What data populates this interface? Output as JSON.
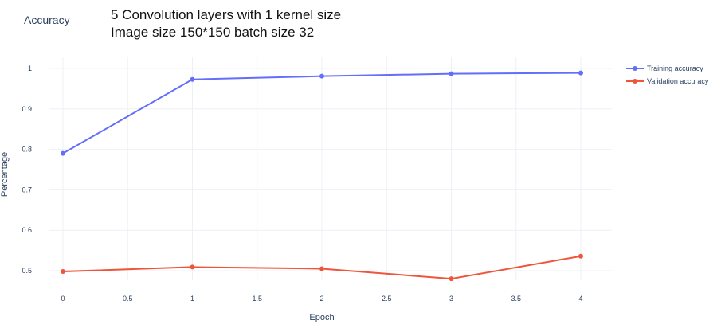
{
  "caption": {
    "line1": "5 Convolution layers with 1 kernel size",
    "line2": "Image size 150*150 batch size 32"
  },
  "chart_data": {
    "type": "line",
    "title": "Accuracy",
    "xlabel": "Epoch",
    "ylabel": "Percentage",
    "x": [
      0,
      1,
      2,
      3,
      4
    ],
    "xlim": [
      0,
      4
    ],
    "ylim": [
      0.5,
      1.0
    ],
    "xticks": [
      "0",
      "0.5",
      "1",
      "1.5",
      "2",
      "2.5",
      "3",
      "3.5",
      "4"
    ],
    "yticks": [
      "0.5",
      "0.6",
      "0.7",
      "0.8",
      "0.9",
      "1"
    ],
    "grid": true,
    "legend_position": "top-right",
    "series": [
      {
        "name": "Training accuracy",
        "color": "#636efa",
        "values": [
          0.79,
          0.973,
          0.981,
          0.987,
          0.989
        ]
      },
      {
        "name": "Validation accuracy",
        "color": "#ef553b",
        "values": [
          0.498,
          0.509,
          0.505,
          0.48,
          0.536
        ]
      }
    ]
  }
}
